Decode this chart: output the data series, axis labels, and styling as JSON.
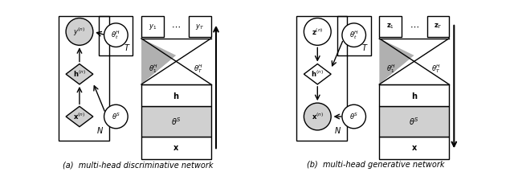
{
  "fig_width": 6.4,
  "fig_height": 2.14,
  "dpi": 100,
  "background_color": "#ffffff",
  "caption_a": "(a)  multi-head discriminative network",
  "caption_b": "(b)  multi-head generative network",
  "gray_light": "#d0d0d0",
  "gray_medium": "#b0b0b0",
  "gray_dark": "#888888",
  "gray_fill": "#c8c8c8"
}
